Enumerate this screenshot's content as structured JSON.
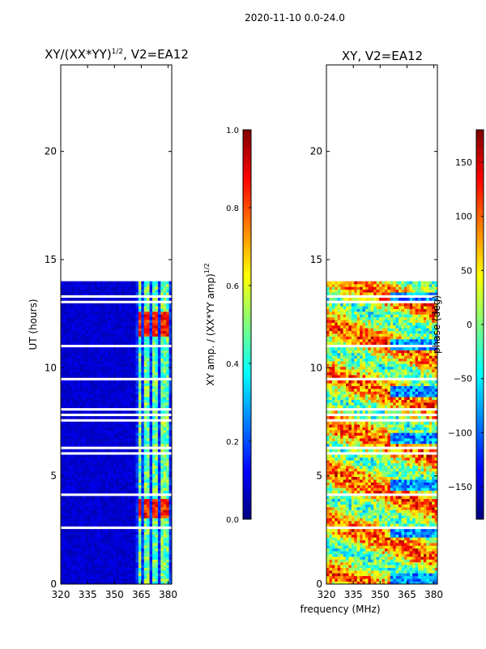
{
  "suptitle": "2020-11-10 0.0-24.0",
  "xlabel_shared": "frequency (MHz)",
  "colors": {
    "jet": [
      "#00007f",
      "#0000ff",
      "#007fff",
      "#00ffff",
      "#7fff7f",
      "#ffff00",
      "#ff7f00",
      "#ff0000",
      "#7f0000"
    ],
    "background": "#ffffff"
  },
  "chart_data": [
    {
      "type": "heatmap",
      "title": "XY/(XX*YY)^1/2, V2=EA12",
      "title_base": "XY/(XX*YY)",
      "title_exp": "1/2",
      "title_suffix": ", V2=EA12",
      "xlabel": "",
      "ylabel": "UT (hours)",
      "xlim": [
        320,
        382
      ],
      "ylim": [
        0,
        24
      ],
      "xticks": [
        "320",
        "335",
        "350",
        "365",
        "380"
      ],
      "yticks": [
        "0",
        "5",
        "10",
        "15",
        "20"
      ],
      "data_extent_hours": [
        0,
        14
      ],
      "bright_channels_mhz": [
        364,
        368,
        373,
        377,
        380
      ],
      "high_amplitude_periods_hours": [
        [
          11.4,
          12.6
        ],
        [
          3.0,
          4.0
        ]
      ],
      "colorbar": {
        "label": "XY amp. / (XX*YY amp)^1/2",
        "label_base": "XY amp. / (XX*YY amp)",
        "label_exp": "1/2",
        "range": [
          0.0,
          1.0
        ],
        "ticks": [
          "0.0",
          "0.2",
          "0.4",
          "0.6",
          "0.8",
          "1.0"
        ]
      }
    },
    {
      "type": "heatmap",
      "title": "XY, V2=EA12",
      "xlabel": "frequency (MHz)",
      "ylabel": "",
      "xlim": [
        320,
        382
      ],
      "ylim": [
        0,
        24
      ],
      "xticks": [
        "320",
        "335",
        "350",
        "365",
        "380"
      ],
      "yticks": [
        "0",
        "5",
        "10",
        "15",
        "20"
      ],
      "data_extent_hours": [
        0,
        14
      ],
      "colorbar": {
        "label": "phase (deg)",
        "range": [
          -180,
          180
        ],
        "ticks": [
          "−150",
          "−100",
          "−50",
          "0",
          "50",
          "100",
          "150"
        ],
        "tick_values": [
          -150,
          -100,
          -50,
          0,
          50,
          100,
          150
        ]
      }
    }
  ]
}
